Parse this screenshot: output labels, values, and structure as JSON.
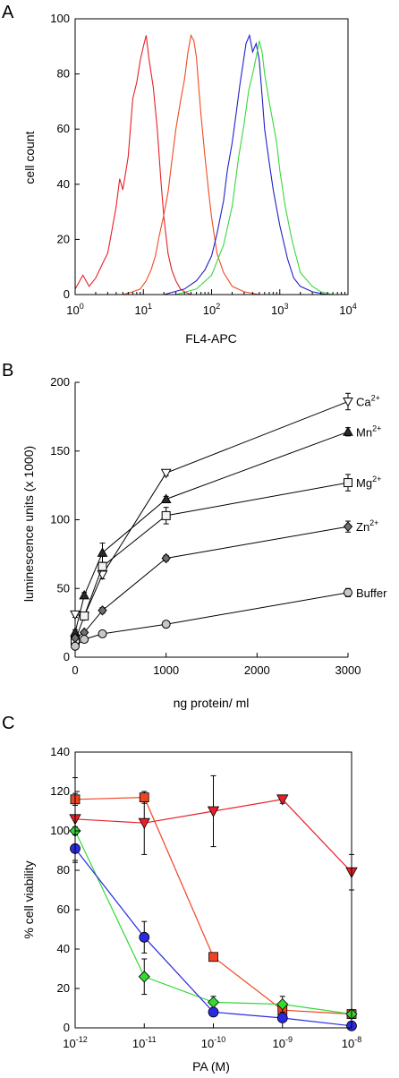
{
  "chart_data": [
    {
      "panel": "A",
      "type": "line",
      "xlabel": "FL4-APC",
      "ylabel": "cell count",
      "x_scale": "log",
      "xlim": [
        1,
        10000
      ],
      "ylim": [
        0,
        100
      ],
      "x_ticks": [
        {
          "base": "10",
          "exp": "0"
        },
        {
          "base": "10",
          "exp": "1"
        },
        {
          "base": "10",
          "exp": "2"
        },
        {
          "base": "10",
          "exp": "3"
        },
        {
          "base": "10",
          "exp": "4"
        }
      ],
      "y_ticks": [
        "0",
        "20",
        "40",
        "60",
        "80",
        "100"
      ],
      "series": [
        {
          "color": "#e8202a",
          "x": [
            1,
            1.3,
            1.6,
            2,
            2.5,
            3,
            3.5,
            4,
            4.5,
            5,
            6,
            7,
            8,
            9,
            10,
            11,
            12,
            14,
            16,
            18,
            20,
            23,
            26,
            30,
            35,
            40,
            50,
            60,
            80
          ],
          "y": [
            2,
            7,
            3,
            6,
            11,
            15,
            24,
            32,
            42,
            38,
            50,
            71,
            77,
            85,
            90,
            94,
            86,
            75,
            60,
            42,
            28,
            15,
            9,
            5,
            2,
            1,
            0,
            0,
            0
          ]
        },
        {
          "color": "#f04a22",
          "x": [
            5,
            7,
            9,
            11,
            13,
            15,
            17,
            20,
            23,
            26,
            30,
            35,
            40,
            45,
            50,
            55,
            60,
            65,
            70,
            80,
            90,
            100,
            120,
            150,
            200,
            300,
            500,
            700
          ],
          "y": [
            0,
            1,
            2,
            5,
            9,
            14,
            21,
            29,
            37,
            48,
            60,
            70,
            78,
            88,
            94,
            92,
            86,
            75,
            65,
            50,
            38,
            28,
            15,
            8,
            3,
            1,
            0,
            0
          ]
        },
        {
          "color": "#2020c8",
          "x": [
            20,
            40,
            60,
            80,
            100,
            120,
            150,
            170,
            200,
            230,
            260,
            290,
            320,
            360,
            400,
            450,
            500,
            550,
            600,
            700,
            800,
            1000,
            1300,
            1600,
            2000,
            3000,
            5000
          ],
          "y": [
            0,
            2,
            5,
            9,
            14,
            22,
            34,
            45,
            55,
            66,
            76,
            84,
            91,
            94,
            88,
            91,
            85,
            72,
            60,
            48,
            38,
            25,
            13,
            6,
            3,
            1,
            0
          ]
        },
        {
          "color": "#3ad83a",
          "x": [
            30,
            60,
            100,
            150,
            200,
            250,
            300,
            350,
            400,
            450,
            500,
            550,
            600,
            700,
            800,
            900,
            1000,
            1200,
            1500,
            2000,
            3000,
            4000,
            6000,
            8000
          ],
          "y": [
            0,
            2,
            7,
            18,
            32,
            50,
            62,
            74,
            80,
            86,
            92,
            88,
            80,
            70,
            62,
            55,
            45,
            32,
            20,
            8,
            3,
            1,
            0,
            0
          ]
        }
      ]
    },
    {
      "panel": "B",
      "type": "line",
      "xlabel": "ng protein/ ml",
      "ylabel": "luminescence units (x 1000)",
      "xlim": [
        0,
        3000
      ],
      "ylim": [
        0,
        200
      ],
      "x_ticks": [
        "0",
        "1000",
        "2000",
        "3000"
      ],
      "y_ticks": [
        "0",
        "50",
        "100",
        "150",
        "200"
      ],
      "x": [
        0,
        100,
        300,
        1000,
        3000
      ],
      "series": [
        {
          "label": "Ca",
          "label_sup": "2+",
          "marker": "triangle-down-open",
          "values": [
            31,
            30,
            60,
            134,
            186
          ],
          "errors": [
            2,
            2,
            3,
            2,
            6
          ]
        },
        {
          "label": "Mn",
          "label_sup": "2+",
          "marker": "triangle-up-filled",
          "values": [
            18,
            45,
            76,
            115,
            164
          ],
          "errors": [
            2,
            2,
            7,
            2,
            3
          ]
        },
        {
          "label": "Mg",
          "label_sup": "2+",
          "marker": "square-open",
          "values": [
            12,
            30,
            66,
            103,
            127
          ],
          "errors": [
            2,
            2,
            3,
            6,
            6
          ]
        },
        {
          "label": "Zn",
          "label_sup": "2+",
          "marker": "diamond-filled",
          "values": [
            14,
            18,
            34,
            72,
            95
          ],
          "errors": [
            1,
            1,
            2,
            2,
            4
          ]
        },
        {
          "label": "Buffer",
          "label_sup": "",
          "marker": "circle-filled",
          "values": [
            8,
            13,
            17,
            24,
            47
          ],
          "errors": [
            1,
            1,
            1,
            1,
            3
          ]
        }
      ]
    },
    {
      "panel": "C",
      "type": "line",
      "xlabel": "PA (M)",
      "ylabel": "% cell viability",
      "x_scale": "log",
      "ylim": [
        0,
        140
      ],
      "x_ticks": [
        {
          "base": "10",
          "exp": "-12"
        },
        {
          "base": "10",
          "exp": "-11"
        },
        {
          "base": "10",
          "exp": "-10"
        },
        {
          "base": "10",
          "exp": "-9"
        },
        {
          "base": "10",
          "exp": "-8"
        }
      ],
      "y_ticks": [
        "0",
        "20",
        "40",
        "60",
        "80",
        "100",
        "120",
        "140"
      ],
      "x": [
        1e-12,
        1e-11,
        1e-10,
        1e-09,
        1e-08
      ],
      "series": [
        {
          "color": "#e8202a",
          "marker": "triangle-down",
          "values": [
            106,
            104,
            110,
            116,
            79
          ],
          "errors": [
            21,
            16,
            18,
            2,
            9
          ]
        },
        {
          "color": "#ef4422",
          "marker": "square",
          "values": [
            116,
            117,
            36,
            9,
            7
          ],
          "errors": [
            3,
            3,
            2,
            1,
            1
          ]
        },
        {
          "color": "#36d836",
          "marker": "diamond",
          "values": [
            100,
            26,
            13,
            12,
            7
          ],
          "errors": [
            2,
            9,
            3,
            4,
            2
          ]
        },
        {
          "color": "#2a2ae0",
          "marker": "circle",
          "values": [
            91,
            46,
            8,
            5,
            1
          ],
          "errors": [
            7,
            8,
            2,
            1,
            0.5
          ]
        }
      ]
    }
  ]
}
